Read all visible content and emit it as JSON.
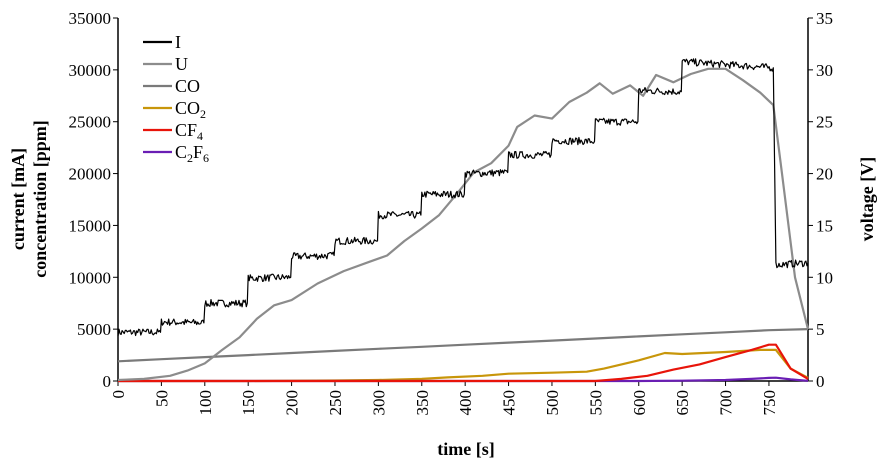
{
  "chart_data": {
    "type": "line",
    "xlabel": "time [s]",
    "ylabel_line1": "current [mA]",
    "ylabel_line2": "concentration [ppm]",
    "y2label": "voltage [V]",
    "xlim": [
      0,
      795
    ],
    "ylim": [
      0,
      35000
    ],
    "y2lim": [
      0,
      35
    ],
    "x_ticks": [
      0,
      50,
      100,
      150,
      200,
      250,
      300,
      350,
      400,
      450,
      500,
      550,
      600,
      650,
      700,
      750
    ],
    "y_ticks": [
      0,
      5000,
      10000,
      15000,
      20000,
      25000,
      30000,
      35000
    ],
    "y2_ticks": [
      0,
      5,
      10,
      15,
      20,
      25,
      30,
      35
    ],
    "grid": false,
    "legend_position": "top-left",
    "series": [
      {
        "name": "I",
        "legend_sub": "",
        "color": "#000000",
        "axis": "left",
        "noisy": true,
        "x": [
          0,
          49,
          50,
          99,
          100,
          149,
          150,
          199,
          200,
          249,
          250,
          299,
          300,
          349,
          350,
          399,
          400,
          449,
          450,
          499,
          500,
          549,
          550,
          599,
          600,
          649,
          650,
          755,
          758,
          795
        ],
        "y": [
          4700,
          4700,
          5700,
          5600,
          7500,
          7500,
          9900,
          10000,
          12000,
          12100,
          13500,
          13500,
          16000,
          16000,
          18000,
          18000,
          20000,
          20100,
          21800,
          21800,
          23200,
          23100,
          25000,
          25000,
          28000,
          27900,
          30800,
          30200,
          11200,
          11400
        ]
      },
      {
        "name": "U",
        "legend_sub": "",
        "color": "#8c8c8c",
        "axis": "right",
        "noisy": false,
        "x": [
          0,
          30,
          60,
          80,
          100,
          120,
          140,
          160,
          180,
          200,
          230,
          260,
          290,
          310,
          330,
          350,
          370,
          390,
          410,
          430,
          450,
          460,
          480,
          500,
          520,
          540,
          555,
          570,
          590,
          605,
          620,
          640,
          660,
          680,
          700,
          720,
          740,
          755,
          765,
          780,
          795
        ],
        "y": [
          0.1,
          0.2,
          0.5,
          1.0,
          1.7,
          3.0,
          4.2,
          6.0,
          7.3,
          7.8,
          9.4,
          10.6,
          11.5,
          12.1,
          13.5,
          14.7,
          16.0,
          18.0,
          20.1,
          21.0,
          22.7,
          24.5,
          25.6,
          25.3,
          26.9,
          27.8,
          28.7,
          27.7,
          28.5,
          27.5,
          29.5,
          28.8,
          29.6,
          30.1,
          30.1,
          29.0,
          27.8,
          26.6,
          20.0,
          10.0,
          5.0
        ]
      },
      {
        "name": "CO",
        "legend_sub": "",
        "color": "#7a7a7a",
        "axis": "left",
        "noisy": false,
        "x": [
          0,
          50,
          100,
          150,
          200,
          250,
          300,
          350,
          400,
          450,
          500,
          550,
          600,
          650,
          700,
          750,
          795
        ],
        "y": [
          1900,
          2100,
          2300,
          2500,
          2700,
          2900,
          3100,
          3300,
          3500,
          3700,
          3900,
          4100,
          4300,
          4500,
          4700,
          4900,
          5000
        ]
      },
      {
        "name": "CO",
        "legend_sub": "2",
        "color": "#c8960a",
        "axis": "left",
        "noisy": false,
        "x": [
          0,
          150,
          250,
          300,
          350,
          380,
          420,
          450,
          500,
          540,
          560,
          600,
          630,
          650,
          700,
          740,
          758,
          775,
          795
        ],
        "y": [
          0,
          0,
          50,
          100,
          200,
          350,
          500,
          700,
          800,
          900,
          1200,
          2000,
          2700,
          2600,
          2800,
          3000,
          3000,
          1200,
          300
        ]
      },
      {
        "name": "CF",
        "legend_sub": "4",
        "color": "#e8140a",
        "axis": "left",
        "noisy": false,
        "x": [
          0,
          550,
          580,
          610,
          640,
          670,
          700,
          730,
          750,
          758,
          775,
          795
        ],
        "y": [
          0,
          0,
          200,
          500,
          1100,
          1600,
          2300,
          3000,
          3500,
          3500,
          1200,
          200
        ]
      },
      {
        "name": "C",
        "legend_sub": "2",
        "legend_mid": "F",
        "legend_sub2": "6",
        "color": "#6a1eb4",
        "axis": "left",
        "noisy": false,
        "x": [
          0,
          600,
          650,
          700,
          730,
          750,
          758,
          775,
          795
        ],
        "y": [
          0,
          0,
          30,
          100,
          200,
          300,
          320,
          150,
          20
        ]
      }
    ]
  }
}
